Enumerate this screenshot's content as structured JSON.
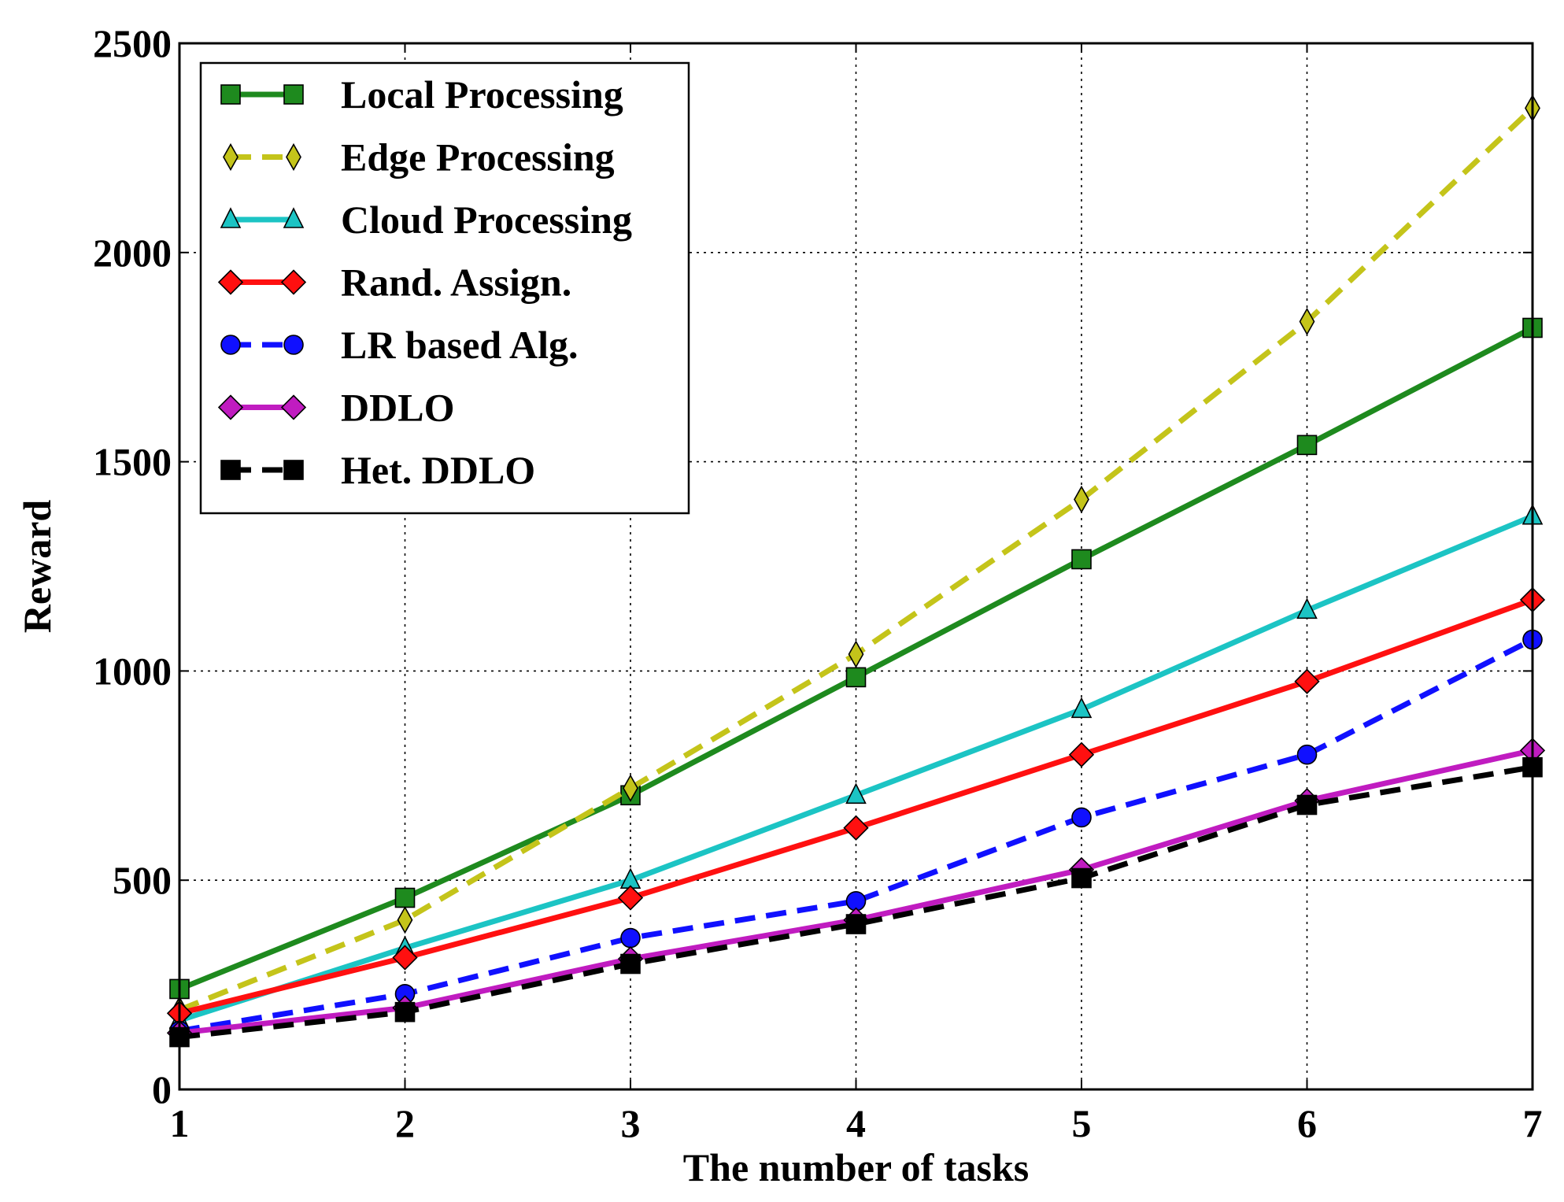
{
  "chart_data": {
    "type": "line",
    "title": "",
    "xlabel": "The number of tasks",
    "ylabel": "Reward",
    "x": [
      1,
      2,
      3,
      4,
      5,
      6,
      7
    ],
    "xlim": [
      1,
      7
    ],
    "ylim": [
      0,
      2500
    ],
    "x_ticks": [
      "1",
      "2",
      "3",
      "4",
      "5",
      "6",
      "7"
    ],
    "y_ticks": [
      "0",
      "500",
      "1000",
      "1500",
      "2000",
      "2500"
    ],
    "y_tick_values": [
      0,
      500,
      1000,
      1500,
      2000,
      2500
    ],
    "grid": true,
    "legend_position": "top-left",
    "series": [
      {
        "name": "Local Processing",
        "values": [
          240,
          458,
          703,
          985,
          1267,
          1540,
          1820
        ],
        "color": "#1e8a1e",
        "dash": "solid",
        "marker": "square"
      },
      {
        "name": "Edge Processing",
        "values": [
          190,
          405,
          720,
          1040,
          1410,
          1835,
          2345
        ],
        "color": "#c4c41a",
        "dash": "dashed",
        "marker": "thin-diamond"
      },
      {
        "name": "Cloud Processing",
        "values": [
          165,
          338,
          500,
          703,
          908,
          1145,
          1370
        ],
        "color": "#1cc4c4",
        "dash": "solid",
        "marker": "triangle"
      },
      {
        "name": "Rand. Assign.",
        "values": [
          182,
          315,
          458,
          625,
          800,
          975,
          1170
        ],
        "color": "#ff1010",
        "dash": "solid",
        "marker": "diamond"
      },
      {
        "name": "LR based Alg.",
        "values": [
          140,
          228,
          362,
          450,
          650,
          800,
          1075
        ],
        "color": "#1010ff",
        "dash": "dashed",
        "marker": "circle"
      },
      {
        "name": "DDLO",
        "values": [
          135,
          195,
          312,
          405,
          525,
          690,
          810
        ],
        "color": "#c01cc0",
        "dash": "solid",
        "marker": "diamond"
      },
      {
        "name": "Het. DDLO",
        "values": [
          125,
          185,
          300,
          395,
          505,
          680,
          770
        ],
        "color": "#000000",
        "dash": "dashed",
        "marker": "square"
      }
    ]
  }
}
